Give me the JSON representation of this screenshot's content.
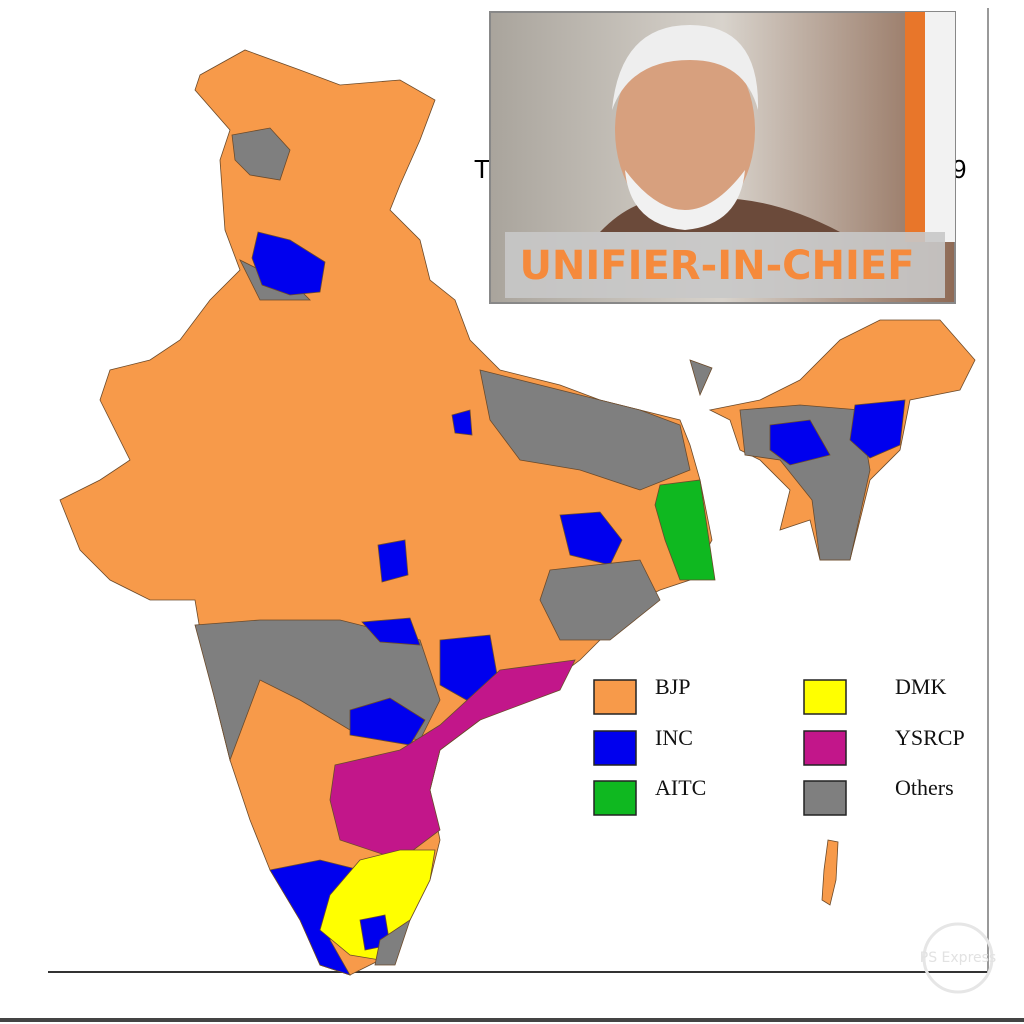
{
  "title_fragments": [
    "T",
    "9"
  ],
  "inset": {
    "caption": "UNIFIER-IN-CHIEF"
  },
  "legend": [
    {
      "label": "BJP",
      "color": "#f79a4a"
    },
    {
      "label": "INC",
      "color": "#0000ee"
    },
    {
      "label": "AITC",
      "color": "#0fb820"
    },
    {
      "label": "DMK",
      "color": "#ffff00"
    },
    {
      "label": "YSRCP",
      "color": "#c2168a"
    },
    {
      "label": "Others",
      "color": "#7f7f7f"
    }
  ],
  "watermark": "PS Express"
}
